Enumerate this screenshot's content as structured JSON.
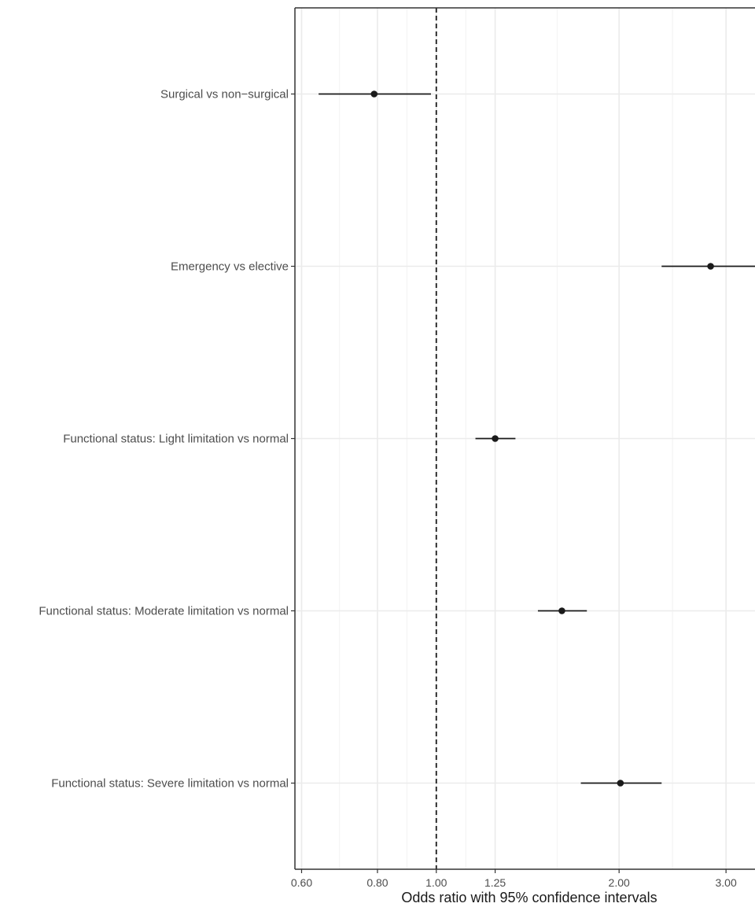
{
  "chart_data": {
    "type": "forest",
    "xlabel": "Odds ratio with 95% confidence intervals",
    "x_scale": "log",
    "xlim": [
      0.585,
      3.45
    ],
    "x_ticks": [
      0.6,
      0.8,
      1.0,
      1.25,
      2.0,
      3.0
    ],
    "x_tick_labels": [
      "0.60",
      "0.80",
      "1.00",
      "1.25",
      "2.00",
      "3.00"
    ],
    "reference_line": 1.0,
    "grid": true,
    "rows": [
      {
        "label": "Surgical vs non−surgical",
        "estimate": 0.79,
        "lower": 0.64,
        "upper": 0.98
      },
      {
        "label": "Emergency vs elective",
        "estimate": 2.83,
        "lower": 2.35,
        "upper": 3.4
      },
      {
        "label": "Functional status: Light limitation vs normal",
        "estimate": 1.25,
        "lower": 1.16,
        "upper": 1.35
      },
      {
        "label": "Functional status: Moderate limitation vs normal",
        "estimate": 1.61,
        "lower": 1.47,
        "upper": 1.77
      },
      {
        "label": "Functional status: Severe limitation vs normal",
        "estimate": 2.01,
        "lower": 1.73,
        "upper": 2.35
      }
    ]
  }
}
